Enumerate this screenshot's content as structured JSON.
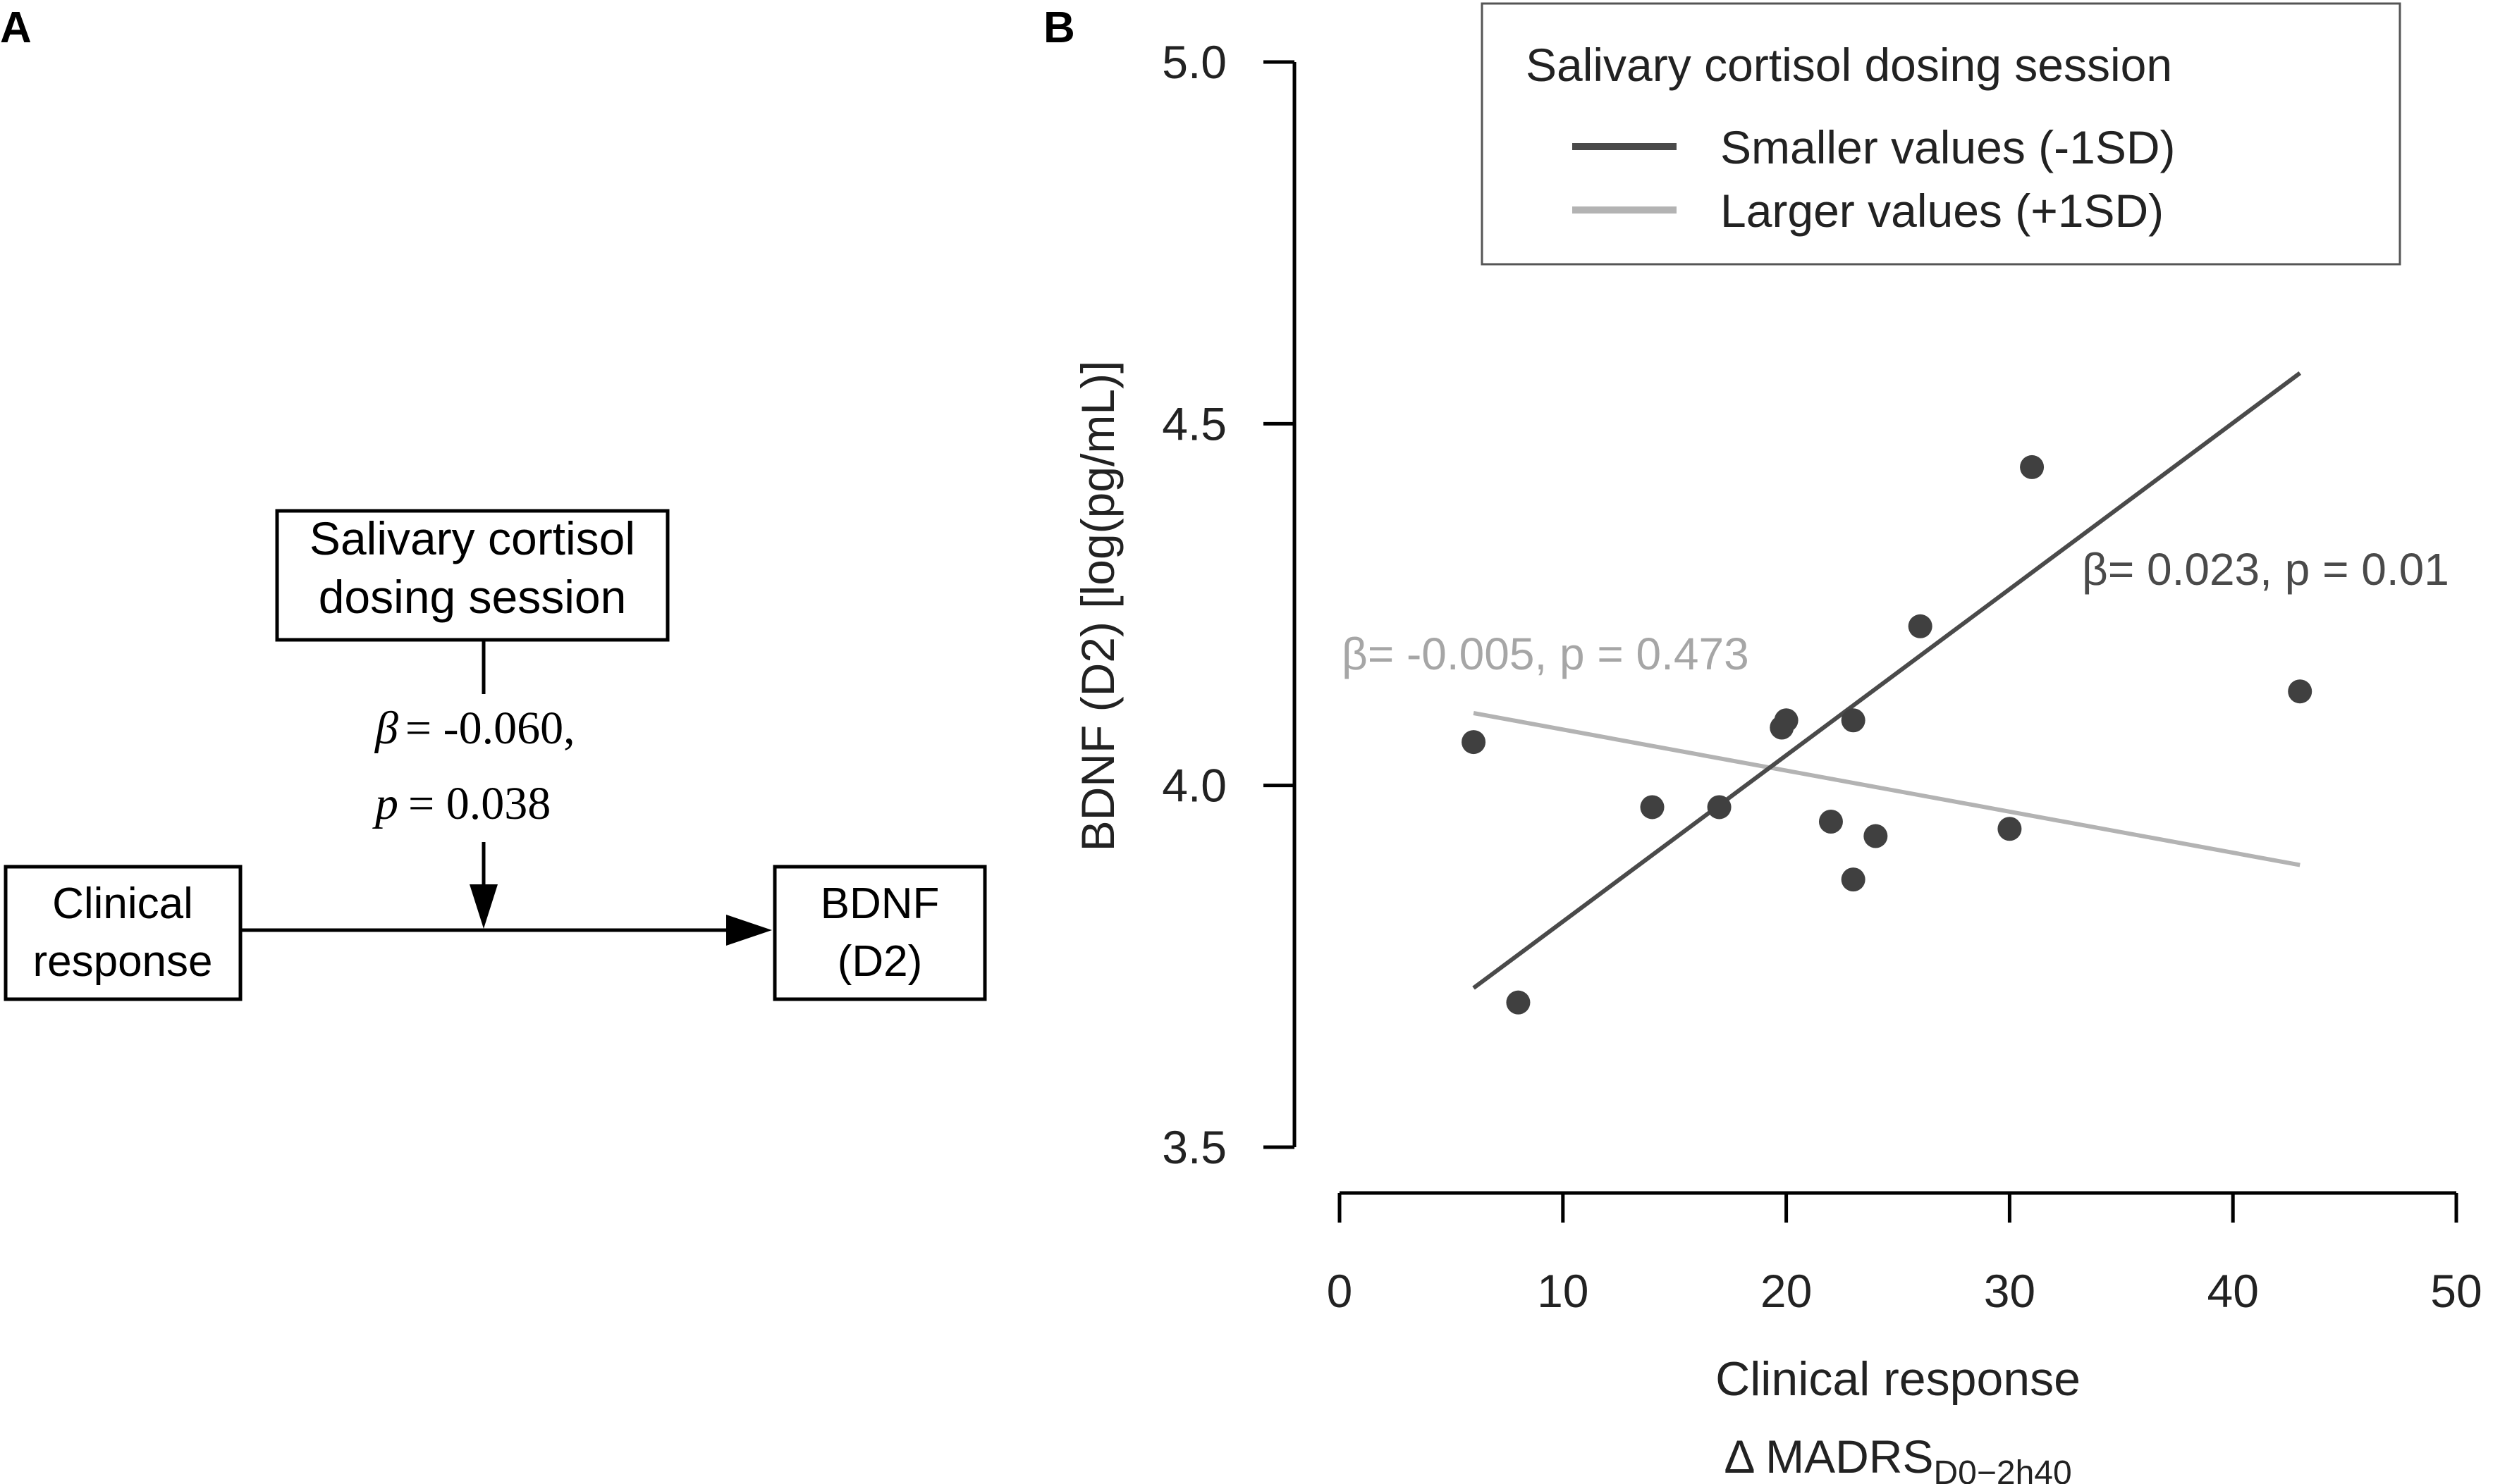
{
  "colors": {
    "ink": "#000000",
    "point": "#404040",
    "line_smaller": "#4a4a4a",
    "line_larger": "#b3b3b3",
    "text_dark": "#222222",
    "text_light": "#a6a6a6"
  },
  "panel_a": {
    "label": "A",
    "moderator_box": {
      "line1": "Salivary cortisol",
      "line2": "dosing session"
    },
    "coef": {
      "beta_symbol": "β",
      "beta_value": "= -0.060,",
      "p_symbol": "p",
      "p_value": "= 0.038"
    },
    "predictor_box": {
      "line1": "Clinical",
      "line2": "response"
    },
    "outcome_box": {
      "line1": "BDNF",
      "line2": "(D2)"
    }
  },
  "panel_b": {
    "label": "B",
    "legend": {
      "title": "Salivary cortisol dosing session",
      "items": [
        {
          "label": "Smaller values (-1SD)",
          "color": "#4a4a4a"
        },
        {
          "label": "Larger values (+1SD)",
          "color": "#b3b3b3"
        }
      ]
    },
    "annotations": {
      "smaller": "β= 0.023, p = 0.01",
      "larger": "β= -0.005, p = 0.473"
    },
    "xlabel_line1": "Clinical response",
    "xlabel_line2_prefix": "Δ MADRS",
    "xlabel_line2_sub": "D0−2h40",
    "ylabel": "BDNF (D2) [log(pg/mL)]"
  },
  "chart_data": {
    "type": "scatter",
    "xlabel": "Clinical response Δ MADRS D0−2h40",
    "ylabel": "BDNF (D2) [log(pg/mL)]",
    "xlim": [
      0,
      50
    ],
    "ylim": [
      3.5,
      5.0
    ],
    "x_ticks": [
      0,
      10,
      20,
      30,
      40,
      50
    ],
    "y_ticks": [
      3.5,
      4.0,
      4.5,
      5.0
    ],
    "x_tick_labels": [
      "0",
      "10",
      "20",
      "30",
      "40",
      "50"
    ],
    "y_tick_labels": [
      "3.5",
      "4.0",
      "4.5",
      "5.0"
    ],
    "points": [
      {
        "x": 6,
        "y": 4.06
      },
      {
        "x": 8,
        "y": 3.7
      },
      {
        "x": 14,
        "y": 3.97
      },
      {
        "x": 17,
        "y": 3.97
      },
      {
        "x": 19.8,
        "y": 4.08
      },
      {
        "x": 20,
        "y": 4.09
      },
      {
        "x": 22,
        "y": 3.95
      },
      {
        "x": 23,
        "y": 4.09
      },
      {
        "x": 23,
        "y": 3.87
      },
      {
        "x": 24,
        "y": 3.93
      },
      {
        "x": 26,
        "y": 4.22
      },
      {
        "x": 30,
        "y": 3.94
      },
      {
        "x": 31,
        "y": 4.44
      },
      {
        "x": 43,
        "y": 4.13
      }
    ],
    "series": [
      {
        "name": "Smaller values (-1SD)",
        "x": [
          6,
          43
        ],
        "y": [
          3.72,
          4.57
        ]
      },
      {
        "name": "Larger values (+1SD)",
        "x": [
          6,
          43
        ],
        "y": [
          4.1,
          3.89
        ]
      }
    ]
  }
}
